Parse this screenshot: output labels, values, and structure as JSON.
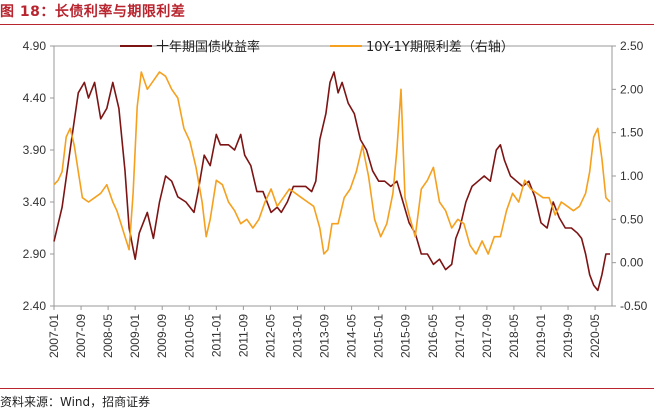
{
  "figure_title": "图 18：长债利率与期限利差",
  "source_text": "资料来源：Wind，招商证券",
  "colors": {
    "accent": "#b8252f",
    "series_10y": "#7d1414",
    "series_spread": "#f5a01e"
  },
  "chart_data": {
    "type": "line",
    "title": "图 18：长债利率与期限利差",
    "xlabel": "",
    "ylabel": "",
    "legend_position": "top",
    "x_ticks": [
      "2007-01",
      "2007-09",
      "2008-05",
      "2009-01",
      "2009-09",
      "2010-05",
      "2011-01",
      "2011-09",
      "2012-05",
      "2013-01",
      "2013-09",
      "2014-05",
      "2015-01",
      "2015-09",
      "2016-05",
      "2017-01",
      "2017-09",
      "2018-05",
      "2019-01",
      "2019-09",
      "2020-05"
    ],
    "y_left": {
      "ylim": [
        2.4,
        4.9
      ],
      "ticks": [
        "4.90",
        "4.40",
        "3.90",
        "3.40",
        "2.90",
        "2.40"
      ],
      "tick_values": [
        4.9,
        4.4,
        3.9,
        3.4,
        2.9,
        2.4
      ]
    },
    "y_right": {
      "ylim": [
        -0.5,
        2.5
      ],
      "ticks": [
        "2.50",
        "2.00",
        "1.50",
        "1.00",
        "0.50",
        "0.00",
        "-0.50"
      ],
      "tick_values": [
        2.5,
        2.0,
        1.5,
        1.0,
        0.5,
        0.0,
        -0.5
      ]
    },
    "series": [
      {
        "name": "十年期国债收益率",
        "axis": "left",
        "x": [
          2007.0,
          2007.2,
          2007.45,
          2007.6,
          2007.75,
          2007.85,
          2008.0,
          2008.15,
          2008.3,
          2008.45,
          2008.6,
          2008.75,
          2008.85,
          2008.95,
          2009.0,
          2009.1,
          2009.3,
          2009.45,
          2009.6,
          2009.75,
          2009.9,
          2010.05,
          2010.25,
          2010.45,
          2010.55,
          2010.7,
          2010.85,
          2011.0,
          2011.1,
          2011.3,
          2011.45,
          2011.6,
          2011.7,
          2011.85,
          2012.0,
          2012.15,
          2012.35,
          2012.5,
          2012.6,
          2012.75,
          2012.9,
          2013.05,
          2013.2,
          2013.35,
          2013.45,
          2013.55,
          2013.7,
          2013.8,
          2013.9,
          2014.0,
          2014.1,
          2014.25,
          2014.4,
          2014.55,
          2014.7,
          2014.85,
          2015.0,
          2015.15,
          2015.3,
          2015.45,
          2015.6,
          2015.75,
          2015.9,
          2016.05,
          2016.2,
          2016.35,
          2016.5,
          2016.65,
          2016.8,
          2016.9,
          2017.0,
          2017.15,
          2017.3,
          2017.45,
          2017.6,
          2017.75,
          2017.9,
          2018.0,
          2018.1,
          2018.25,
          2018.4,
          2018.55,
          2018.7,
          2018.85,
          2019.0,
          2019.15,
          2019.3,
          2019.45,
          2019.6,
          2019.75,
          2019.9,
          2020.0,
          2020.1,
          2020.2,
          2020.3,
          2020.4,
          2020.5,
          2020.6,
          2020.7
        ],
        "values": [
          3.02,
          3.35,
          4.05,
          4.45,
          4.55,
          4.4,
          4.55,
          4.2,
          4.3,
          4.55,
          4.3,
          3.7,
          3.15,
          2.95,
          2.85,
          3.1,
          3.3,
          3.05,
          3.4,
          3.65,
          3.6,
          3.45,
          3.4,
          3.3,
          3.5,
          3.85,
          3.75,
          4.05,
          3.95,
          3.95,
          3.9,
          4.05,
          3.85,
          3.75,
          3.5,
          3.5,
          3.3,
          3.35,
          3.3,
          3.4,
          3.55,
          3.55,
          3.55,
          3.5,
          3.6,
          4.0,
          4.25,
          4.55,
          4.65,
          4.45,
          4.55,
          4.35,
          4.25,
          4.0,
          3.9,
          3.7,
          3.6,
          3.6,
          3.55,
          3.6,
          3.4,
          3.2,
          3.1,
          2.9,
          2.9,
          2.8,
          2.85,
          2.75,
          2.8,
          3.05,
          3.15,
          3.4,
          3.55,
          3.6,
          3.65,
          3.6,
          3.9,
          3.95,
          3.8,
          3.65,
          3.6,
          3.55,
          3.6,
          3.45,
          3.2,
          3.15,
          3.4,
          3.25,
          3.15,
          3.15,
          3.1,
          3.05,
          2.9,
          2.7,
          2.6,
          2.55,
          2.7,
          2.9,
          2.9
        ]
      },
      {
        "name": "10Y-1Y期限利差（右轴）",
        "axis": "right",
        "x": [
          2007.0,
          2007.1,
          2007.2,
          2007.3,
          2007.4,
          2007.5,
          2007.6,
          2007.7,
          2007.85,
          2008.0,
          2008.15,
          2008.3,
          2008.45,
          2008.55,
          2008.65,
          2008.75,
          2008.85,
          2008.95,
          2009.05,
          2009.15,
          2009.3,
          2009.45,
          2009.6,
          2009.75,
          2009.9,
          2010.05,
          2010.2,
          2010.35,
          2010.5,
          2010.65,
          2010.75,
          2010.85,
          2011.0,
          2011.15,
          2011.3,
          2011.45,
          2011.6,
          2011.75,
          2011.9,
          2012.05,
          2012.2,
          2012.35,
          2012.5,
          2012.65,
          2012.8,
          2012.95,
          2013.1,
          2013.25,
          2013.4,
          2013.55,
          2013.65,
          2013.75,
          2013.85,
          2014.0,
          2014.15,
          2014.3,
          2014.45,
          2014.6,
          2014.75,
          2014.9,
          2015.05,
          2015.2,
          2015.35,
          2015.45,
          2015.55,
          2015.65,
          2015.75,
          2015.9,
          2016.05,
          2016.2,
          2016.35,
          2016.5,
          2016.65,
          2016.8,
          2016.95,
          2017.1,
          2017.25,
          2017.4,
          2017.55,
          2017.7,
          2017.85,
          2018.0,
          2018.15,
          2018.3,
          2018.45,
          2018.6,
          2018.75,
          2018.9,
          2019.05,
          2019.2,
          2019.35,
          2019.5,
          2019.65,
          2019.8,
          2019.95,
          2020.1,
          2020.2,
          2020.3,
          2020.4,
          2020.5,
          2020.6,
          2020.7
        ],
        "values": [
          0.9,
          0.95,
          1.05,
          1.45,
          1.55,
          1.35,
          1.05,
          0.75,
          0.7,
          0.75,
          0.8,
          0.9,
          0.7,
          0.6,
          0.45,
          0.3,
          0.15,
          0.8,
          1.8,
          2.2,
          2.0,
          2.1,
          2.2,
          2.15,
          2.0,
          1.9,
          1.55,
          1.4,
          1.1,
          0.7,
          0.3,
          0.5,
          0.95,
          0.9,
          0.7,
          0.6,
          0.45,
          0.5,
          0.4,
          0.5,
          0.7,
          0.85,
          0.65,
          0.75,
          0.85,
          0.8,
          0.75,
          0.7,
          0.65,
          0.4,
          0.1,
          0.15,
          0.45,
          0.45,
          0.75,
          0.85,
          1.05,
          1.35,
          1.0,
          0.5,
          0.3,
          0.45,
          0.8,
          1.3,
          2.0,
          0.75,
          0.55,
          0.3,
          0.85,
          0.95,
          1.1,
          0.7,
          0.6,
          0.4,
          0.5,
          0.45,
          0.2,
          0.1,
          0.25,
          0.1,
          0.3,
          0.3,
          0.6,
          0.8,
          0.7,
          0.95,
          0.85,
          0.8,
          0.75,
          0.75,
          0.55,
          0.7,
          0.65,
          0.6,
          0.65,
          0.8,
          1.05,
          1.45,
          1.55,
          1.2,
          0.75,
          0.7
        ]
      }
    ]
  }
}
